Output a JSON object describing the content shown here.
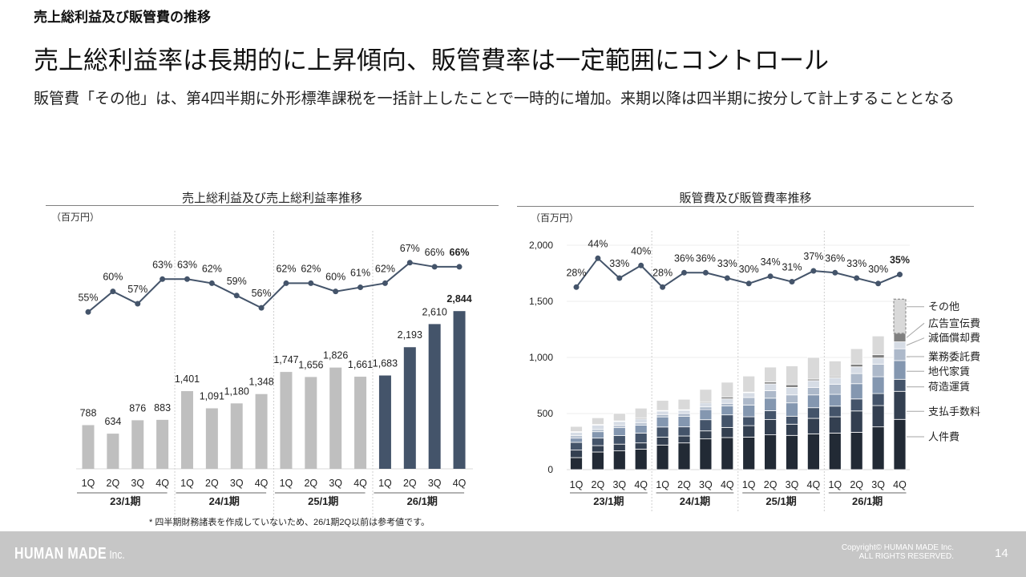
{
  "slide": {
    "section_title": "売上総利益及び販管費の推移",
    "headline": "売上総利益率は長期的に上昇傾向、販管費率は一定範囲にコントロール",
    "description": "販管費「その他」は、第4四半期に外形標準課税を一括計上したことで一時的に増加。来期以降は四半期に按分して計上することとなる"
  },
  "chart_data": [
    {
      "type": "bar",
      "title": "売上総利益及び売上総利益率推移",
      "unit_label": "（百万円）",
      "xlabel": "",
      "ylabel": "",
      "categories": [
        "1Q",
        "2Q",
        "3Q",
        "4Q",
        "1Q",
        "2Q",
        "3Q",
        "4Q",
        "1Q",
        "2Q",
        "3Q",
        "4Q",
        "1Q",
        "2Q",
        "3Q",
        "4Q"
      ],
      "periods": [
        "23/1期",
        "24/1期",
        "25/1期",
        "26/1期"
      ],
      "series": [
        {
          "name": "売上総利益",
          "kind": "bar",
          "values": [
            788,
            634,
            876,
            883,
            1401,
            1091,
            1180,
            1348,
            1747,
            1656,
            1826,
            1661,
            1683,
            2193,
            2610,
            2844
          ],
          "labels": [
            "788",
            "634",
            "876",
            "883",
            "1,401",
            "1,091",
            "1,180",
            "1,348",
            "1,747",
            "1,656",
            "1,826",
            "1,661",
            "1,683",
            "2,193",
            "2,610",
            "2,844"
          ]
        },
        {
          "name": "売上総利益率",
          "kind": "line",
          "unit": "%",
          "values": [
            55,
            60,
            57,
            63,
            63,
            62,
            59,
            56,
            62,
            62,
            60,
            61,
            62,
            67,
            66,
            66
          ],
          "labels": [
            "55%",
            "60%",
            "57%",
            "63%",
            "63%",
            "62%",
            "59%",
            "56%",
            "62%",
            "62%",
            "60%",
            "61%",
            "62%",
            "67%",
            "66%",
            "66%"
          ]
        }
      ],
      "colors": {
        "reference_bar": "#bfbfbf",
        "current_bar": "#44546a",
        "line": "#44546a"
      },
      "current_period": "26/1期",
      "emphasize_last_labels": true,
      "grid": false,
      "legend": "none",
      "footnote": "* 四半期財務諸表を作成していないため、26/1期2Q以前は参考値です。"
    },
    {
      "type": "bar",
      "stacked": true,
      "title": "販管費及び販管費率推移",
      "unit_label": "（百万円）",
      "xlabel": "",
      "ylabel": "",
      "ylim": [
        0,
        2000
      ],
      "yticks": [
        0,
        500,
        1000,
        1500,
        2000
      ],
      "ytick_labels": [
        "0",
        "500",
        "1,000",
        "1,500",
        "2,000"
      ],
      "grid": true,
      "categories": [
        "1Q",
        "2Q",
        "3Q",
        "4Q",
        "1Q",
        "2Q",
        "3Q",
        "4Q",
        "1Q",
        "2Q",
        "3Q",
        "4Q",
        "1Q",
        "2Q",
        "3Q",
        "4Q"
      ],
      "periods": [
        "23/1期",
        "24/1期",
        "25/1期",
        "26/1期"
      ],
      "series": [
        {
          "name": "人件費",
          "color": "#222a35",
          "values": [
            107,
            157,
            167,
            183,
            219,
            238,
            274,
            286,
            290,
            310,
            305,
            319,
            326,
            333,
            381,
            448
          ]
        },
        {
          "name": "支払手数料",
          "color": "#333f50",
          "values": [
            67,
            57,
            60,
            55,
            71,
            62,
            71,
            90,
            102,
            136,
            100,
            138,
            145,
            190,
            190,
            250
          ]
        },
        {
          "name": "荷造運賃",
          "color": "#44546a",
          "values": [
            69,
            67,
            76,
            88,
            90,
            81,
            100,
            112,
            79,
            79,
            71,
            95,
            95,
            107,
            107,
            107
          ]
        },
        {
          "name": "地代家賃",
          "color": "#8497b0",
          "values": [
            38,
            57,
            71,
            71,
            90,
            95,
            90,
            79,
            105,
            112,
            119,
            114,
            105,
            136,
            150,
            167
          ]
        },
        {
          "name": "業務委託費",
          "color": "#adb9ca",
          "values": [
            21,
            19,
            19,
            19,
            21,
            24,
            24,
            24,
            67,
            67,
            71,
            67,
            90,
            90,
            112,
            105
          ]
        },
        {
          "name": "減価償却費",
          "color": "#d6dce5",
          "values": [
            31,
            40,
            36,
            36,
            31,
            29,
            36,
            40,
            43,
            60,
            67,
            60,
            57,
            60,
            55,
            62
          ]
        },
        {
          "name": "広告宣伝費",
          "color": "#7f7f7f",
          "values": [
            7,
            5,
            5,
            10,
            5,
            5,
            10,
            17,
            5,
            17,
            24,
            14,
            10,
            24,
            29,
            76
          ]
        },
        {
          "name": "その他",
          "color": "#d9d9d9",
          "values": [
            45,
            60,
            67,
            86,
            90,
            93,
            110,
            131,
            143,
            133,
            167,
            193,
            140,
            138,
            167,
            305
          ]
        }
      ],
      "rate_series": {
        "name": "販管費率",
        "unit": "%",
        "color": "#44546a",
        "values": [
          28,
          44,
          33,
          40,
          28,
          36,
          36,
          33,
          30,
          34,
          31,
          37,
          36,
          33,
          30,
          35
        ],
        "labels": [
          "28%",
          "44%",
          "33%",
          "40%",
          "28%",
          "36%",
          "36%",
          "33%",
          "30%",
          "34%",
          "31%",
          "37%",
          "36%",
          "33%",
          "30%",
          "35%"
        ]
      },
      "legend": {
        "placement": "right",
        "items_top_to_bottom": [
          "その他",
          "広告宣伝費",
          "減価償却費",
          "業務委託費",
          "地代家賃",
          "荷造運賃",
          "支払手数料",
          "人件費"
        ]
      },
      "last_bar_other_dashed": true,
      "emphasize_last_labels": true
    }
  ],
  "footer": {
    "logo_text": "HUMAN MADE",
    "logo_suffix": "Inc.",
    "copyright_line1": "Copyright© HUMAN MADE Inc.",
    "copyright_line2": "ALL RIGHTS RESERVED.",
    "page_number": "14"
  }
}
